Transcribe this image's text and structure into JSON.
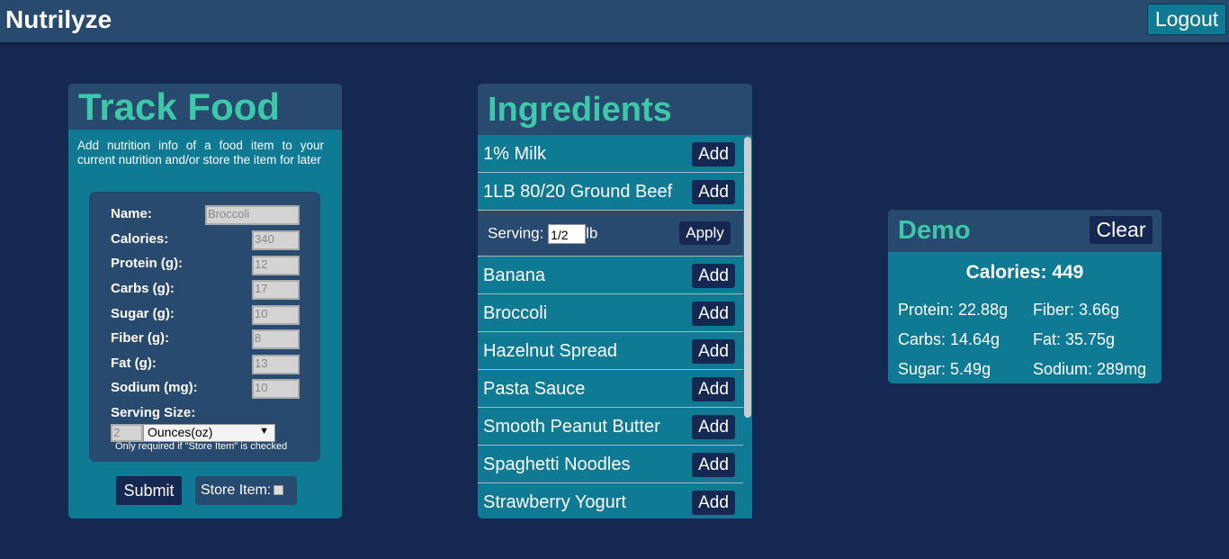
{
  "header": {
    "brand": "Nutrilyze",
    "logout": "Logout"
  },
  "track": {
    "title": "Track Food",
    "description": "Add nutrition info of a food item to your current nutrition and/or store the item for later",
    "fields": [
      {
        "label": "Name:",
        "value": "Broccoli"
      },
      {
        "label": "Calories:",
        "value": "340"
      },
      {
        "label": "Protein (g):",
        "value": "12"
      },
      {
        "label": "Carbs (g):",
        "value": "17"
      },
      {
        "label": "Sugar (g):",
        "value": "10"
      },
      {
        "label": "Fiber (g):",
        "value": "8"
      },
      {
        "label": "Fat (g):",
        "value": "13"
      },
      {
        "label": "Sodium (mg):",
        "value": "10"
      }
    ],
    "serving_label": "Serving Size:",
    "serving_value": "2",
    "serving_unit": "Ounces(oz)",
    "note": "Only required if \"Store Item\" is checked",
    "submit": "Submit",
    "store_label": "Store Item:",
    "store_checked": false
  },
  "ingredients": {
    "title": "Ingredients",
    "add_label": "Add",
    "items": [
      "1% Milk",
      "1LB 80/20 Ground Beef",
      "Banana",
      "Broccoli",
      "Hazelnut Spread",
      "Pasta Sauce",
      "Smooth Peanut Butter",
      "Spaghetti Noodles",
      "Strawberry Yogurt"
    ],
    "serving": {
      "label": "Serving:",
      "value": "1/2",
      "unit": "lb",
      "apply": "Apply"
    }
  },
  "demo": {
    "title": "Demo",
    "clear": "Clear",
    "calories": "Calories: 449",
    "stats": [
      "Protein: 22.88g",
      "Fiber: 3.66g",
      "Carbs: 14.64g",
      "Fat: 35.75g",
      "Sugar: 5.49g",
      "Sodium: 289mg"
    ]
  }
}
